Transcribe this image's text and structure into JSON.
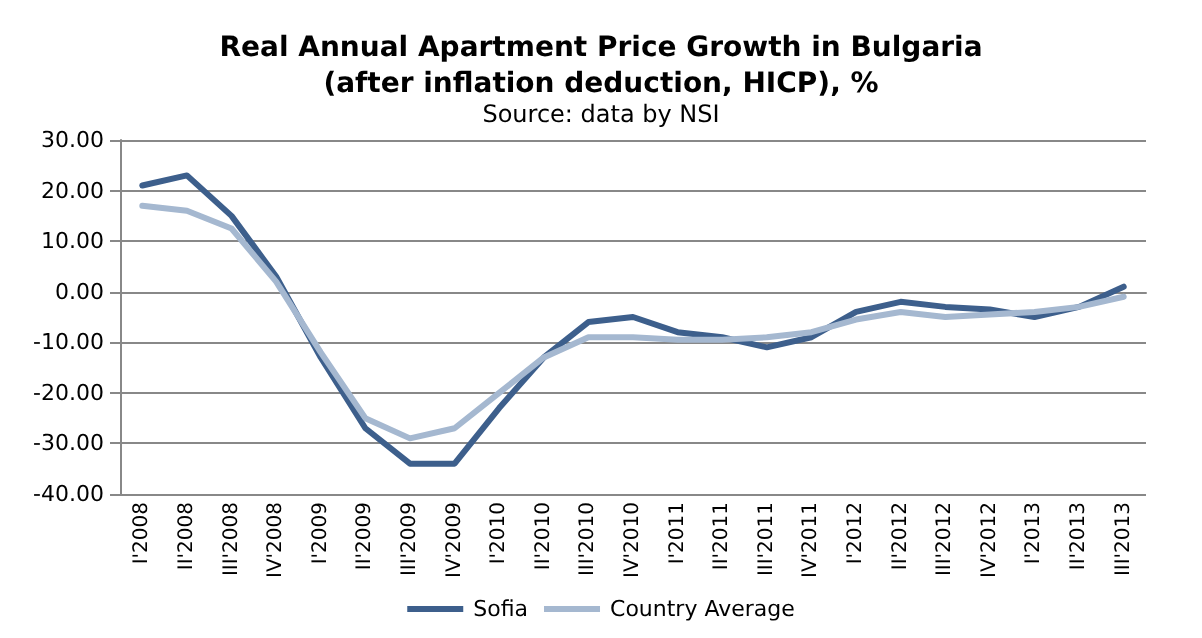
{
  "chart_data": {
    "type": "line",
    "title": "Real Annual Apartment Price Growth in Bulgaria\n(after inflation deduction, HICP), %",
    "subtitle": "Source: data by NSI",
    "categories": [
      "I'2008",
      "II'2008",
      "III'2008",
      "IV'2008",
      "I'2009",
      "II'2009",
      "III'2009",
      "IV'2009",
      "I'2010",
      "II'2010",
      "III'2010",
      "IV'2010",
      "I'2011",
      "II'2011",
      "III'2011",
      "IV'2011",
      "I'2012",
      "II'2012",
      "III'2012",
      "IV'2012",
      "I'2013",
      "II'2013",
      "III'2013"
    ],
    "series": [
      {
        "name": "Sofia",
        "color": "#3d5f8c",
        "values": [
          21,
          23,
          15,
          3,
          -13,
          -27,
          -34,
          -34,
          -23,
          -13,
          -6,
          -5,
          -8,
          -9,
          -11,
          -9,
          -4,
          -2,
          -3,
          -3.5,
          -5,
          -3,
          1
        ]
      },
      {
        "name": "Country Average",
        "color": "#a5b8d0",
        "values": [
          17,
          16,
          12.5,
          2,
          -12,
          -25,
          -29,
          -27,
          -20,
          -13,
          -9,
          -9,
          -9.5,
          -9.5,
          -9,
          -8,
          -5.5,
          -4,
          -5,
          -4.5,
          -4,
          -3,
          -1
        ]
      }
    ],
    "ylim": [
      -40,
      30
    ],
    "yticks": [
      {
        "value": -40,
        "label": "-40.00"
      },
      {
        "value": -30,
        "label": "-30.00"
      },
      {
        "value": -20,
        "label": "-20.00"
      },
      {
        "value": -10,
        "label": "-10.00"
      },
      {
        "value": 0,
        "label": "0.00"
      },
      {
        "value": 10,
        "label": "10.00"
      },
      {
        "value": 20,
        "label": "20.00"
      },
      {
        "value": 30,
        "label": "30.00"
      }
    ],
    "grid": "y",
    "legend": "bottom",
    "marker": "none",
    "line_style": "solid"
  }
}
